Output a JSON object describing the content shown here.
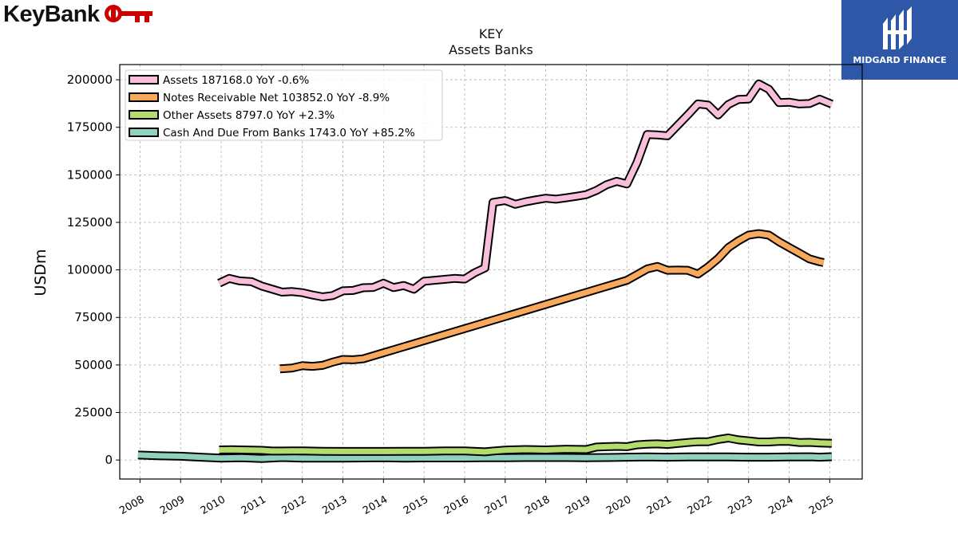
{
  "header": {
    "left_logo_text": "KeyBank",
    "right_logo_text": "MIDGARD FINANCE",
    "brand_red": "#cc0000",
    "brand_blue": "#2f57a8"
  },
  "chart_data": {
    "type": "line",
    "title": "KEY",
    "subtitle": "Assets Banks",
    "xlabel": "",
    "ylabel": "USDm",
    "xlim": [
      2007.5,
      2025.8
    ],
    "ylim": [
      -10000,
      208000
    ],
    "x_ticks": [
      "2008",
      "2009",
      "2010",
      "2011",
      "2012",
      "2013",
      "2014",
      "2015",
      "2016",
      "2017",
      "2018",
      "2019",
      "2020",
      "2021",
      "2022",
      "2023",
      "2024",
      "2025"
    ],
    "y_ticks": [
      "0",
      "25000",
      "50000",
      "75000",
      "100000",
      "125000",
      "150000",
      "175000",
      "200000"
    ],
    "grid": true,
    "legend_position": "top-left",
    "series": [
      {
        "name": "Assets  187168.0 YoY -0.6%",
        "color": "#f7bfd9",
        "points": [
          [
            2009.95,
            93000
          ],
          [
            2010.2,
            95500
          ],
          [
            2010.45,
            94200
          ],
          [
            2010.75,
            93800
          ],
          [
            2011.0,
            91500
          ],
          [
            2011.25,
            89900
          ],
          [
            2011.5,
            88300
          ],
          [
            2011.75,
            88600
          ],
          [
            2012.0,
            88000
          ],
          [
            2012.25,
            86800
          ],
          [
            2012.5,
            85800
          ],
          [
            2012.75,
            86500
          ],
          [
            2013.0,
            89000
          ],
          [
            2013.25,
            89200
          ],
          [
            2013.5,
            90600
          ],
          [
            2013.75,
            90800
          ],
          [
            2014.0,
            93000
          ],
          [
            2014.25,
            90700
          ],
          [
            2014.5,
            91800
          ],
          [
            2014.75,
            89800
          ],
          [
            2015.0,
            94000
          ],
          [
            2015.25,
            94500
          ],
          [
            2015.5,
            95000
          ],
          [
            2015.75,
            95500
          ],
          [
            2016.0,
            95200
          ],
          [
            2016.25,
            98500
          ],
          [
            2016.5,
            101000
          ],
          [
            2016.7,
            135500
          ],
          [
            2017.0,
            136500
          ],
          [
            2017.25,
            134500
          ],
          [
            2017.5,
            135800
          ],
          [
            2017.75,
            136800
          ],
          [
            2018.0,
            137700
          ],
          [
            2018.25,
            137200
          ],
          [
            2018.5,
            137900
          ],
          [
            2018.75,
            138700
          ],
          [
            2019.0,
            139600
          ],
          [
            2019.25,
            141800
          ],
          [
            2019.5,
            144800
          ],
          [
            2019.75,
            146600
          ],
          [
            2020.0,
            145200
          ],
          [
            2020.25,
            156500
          ],
          [
            2020.5,
            171200
          ],
          [
            2020.75,
            171000
          ],
          [
            2021.0,
            170500
          ],
          [
            2021.25,
            176000
          ],
          [
            2021.5,
            181500
          ],
          [
            2021.75,
            187300
          ],
          [
            2022.0,
            186700
          ],
          [
            2022.25,
            181500
          ],
          [
            2022.5,
            187000
          ],
          [
            2022.75,
            189700
          ],
          [
            2023.0,
            189900
          ],
          [
            2023.25,
            197800
          ],
          [
            2023.5,
            195000
          ],
          [
            2023.75,
            188000
          ],
          [
            2024.0,
            188200
          ],
          [
            2024.25,
            187300
          ],
          [
            2024.5,
            187500
          ],
          [
            2024.75,
            189800
          ],
          [
            2025.05,
            187168
          ]
        ]
      },
      {
        "name": "Notes Receivable Net  103852.0 YoY -8.9%",
        "color": "#f8a95e",
        "points": [
          [
            2011.45,
            48000
          ],
          [
            2011.75,
            48400
          ],
          [
            2012.0,
            49600
          ],
          [
            2012.25,
            49300
          ],
          [
            2012.5,
            49800
          ],
          [
            2012.75,
            51500
          ],
          [
            2013.0,
            52900
          ],
          [
            2013.25,
            52700
          ],
          [
            2013.5,
            53200
          ],
          [
            2020.0,
            94500
          ],
          [
            2020.25,
            97500
          ],
          [
            2020.5,
            100500
          ],
          [
            2020.75,
            101800
          ],
          [
            2021.0,
            99800
          ],
          [
            2021.25,
            99900
          ],
          [
            2021.5,
            99800
          ],
          [
            2021.75,
            97800
          ],
          [
            2022.0,
            101500
          ],
          [
            2022.25,
            106000
          ],
          [
            2022.5,
            111700
          ],
          [
            2022.75,
            115300
          ],
          [
            2023.0,
            118300
          ],
          [
            2023.25,
            119100
          ],
          [
            2023.5,
            118300
          ],
          [
            2023.75,
            114800
          ],
          [
            2024.0,
            111800
          ],
          [
            2024.25,
            108800
          ],
          [
            2024.5,
            105800
          ],
          [
            2024.75,
            104300
          ],
          [
            2024.85,
            103852
          ]
        ]
      },
      {
        "name": "Other Assets  8797.0 YoY +2.3%",
        "color": "#b3dc6c",
        "points": [
          [
            2009.95,
            5300
          ],
          [
            2010.25,
            5400
          ],
          [
            2010.5,
            5300
          ],
          [
            2010.75,
            5200
          ],
          [
            2011.0,
            5100
          ],
          [
            2011.25,
            4700
          ],
          [
            2011.5,
            4700
          ],
          [
            2011.75,
            4800
          ],
          [
            2012.0,
            4800
          ],
          [
            2012.5,
            4600
          ],
          [
            2013.0,
            4500
          ],
          [
            2013.5,
            4500
          ],
          [
            2014.0,
            4500
          ],
          [
            2014.5,
            4600
          ],
          [
            2015.0,
            4600
          ],
          [
            2015.5,
            4800
          ],
          [
            2016.0,
            4800
          ],
          [
            2016.5,
            4300
          ],
          [
            2016.75,
            4800
          ],
          [
            2017.0,
            5200
          ],
          [
            2017.5,
            5500
          ],
          [
            2018.0,
            5300
          ],
          [
            2018.5,
            5700
          ],
          [
            2019.0,
            5500
          ],
          [
            2019.25,
            6800
          ],
          [
            2019.5,
            7000
          ],
          [
            2019.75,
            7200
          ],
          [
            2020.0,
            7000
          ],
          [
            2020.25,
            8000
          ],
          [
            2020.5,
            8300
          ],
          [
            2020.75,
            8500
          ],
          [
            2021.0,
            8200
          ],
          [
            2021.25,
            8700
          ],
          [
            2021.5,
            9200
          ],
          [
            2021.75,
            9600
          ],
          [
            2022.0,
            9600
          ],
          [
            2022.25,
            10800
          ],
          [
            2022.5,
            11600
          ],
          [
            2022.75,
            10600
          ],
          [
            2023.0,
            10100
          ],
          [
            2023.25,
            9500
          ],
          [
            2023.5,
            9500
          ],
          [
            2023.75,
            9800
          ],
          [
            2024.0,
            9800
          ],
          [
            2024.25,
            9200
          ],
          [
            2024.5,
            9300
          ],
          [
            2024.75,
            9000
          ],
          [
            2025.05,
            8797
          ]
        ]
      },
      {
        "name": "Cash And Due From Banks  1743.0 YoY +85.2%",
        "color": "#8fd0bf",
        "points": [
          [
            2007.95,
            2600
          ],
          [
            2008.5,
            2200
          ],
          [
            2009.0,
            2000
          ],
          [
            2009.5,
            1500
          ],
          [
            2010.0,
            1000
          ],
          [
            2010.5,
            1200
          ],
          [
            2011.0,
            800
          ],
          [
            2011.5,
            1300
          ],
          [
            2012.0,
            1000
          ],
          [
            2012.5,
            1000
          ],
          [
            2013.0,
            1000
          ],
          [
            2013.5,
            1100
          ],
          [
            2014.0,
            1200
          ],
          [
            2014.5,
            1000
          ],
          [
            2015.0,
            1100
          ],
          [
            2015.5,
            1100
          ],
          [
            2016.0,
            1100
          ],
          [
            2016.5,
            1200
          ],
          [
            2017.0,
            1200
          ],
          [
            2017.5,
            1300
          ],
          [
            2018.0,
            1300
          ],
          [
            2018.5,
            1300
          ],
          [
            2019.0,
            1200
          ],
          [
            2019.5,
            1300
          ],
          [
            2020.0,
            1500
          ],
          [
            2020.5,
            1600
          ],
          [
            2021.0,
            1500
          ],
          [
            2021.5,
            1600
          ],
          [
            2022.0,
            1600
          ],
          [
            2022.5,
            1600
          ],
          [
            2023.0,
            1500
          ],
          [
            2023.5,
            1500
          ],
          [
            2024.0,
            1600
          ],
          [
            2024.5,
            1700
          ],
          [
            2024.75,
            1500
          ],
          [
            2025.05,
            1743
          ]
        ]
      }
    ]
  }
}
